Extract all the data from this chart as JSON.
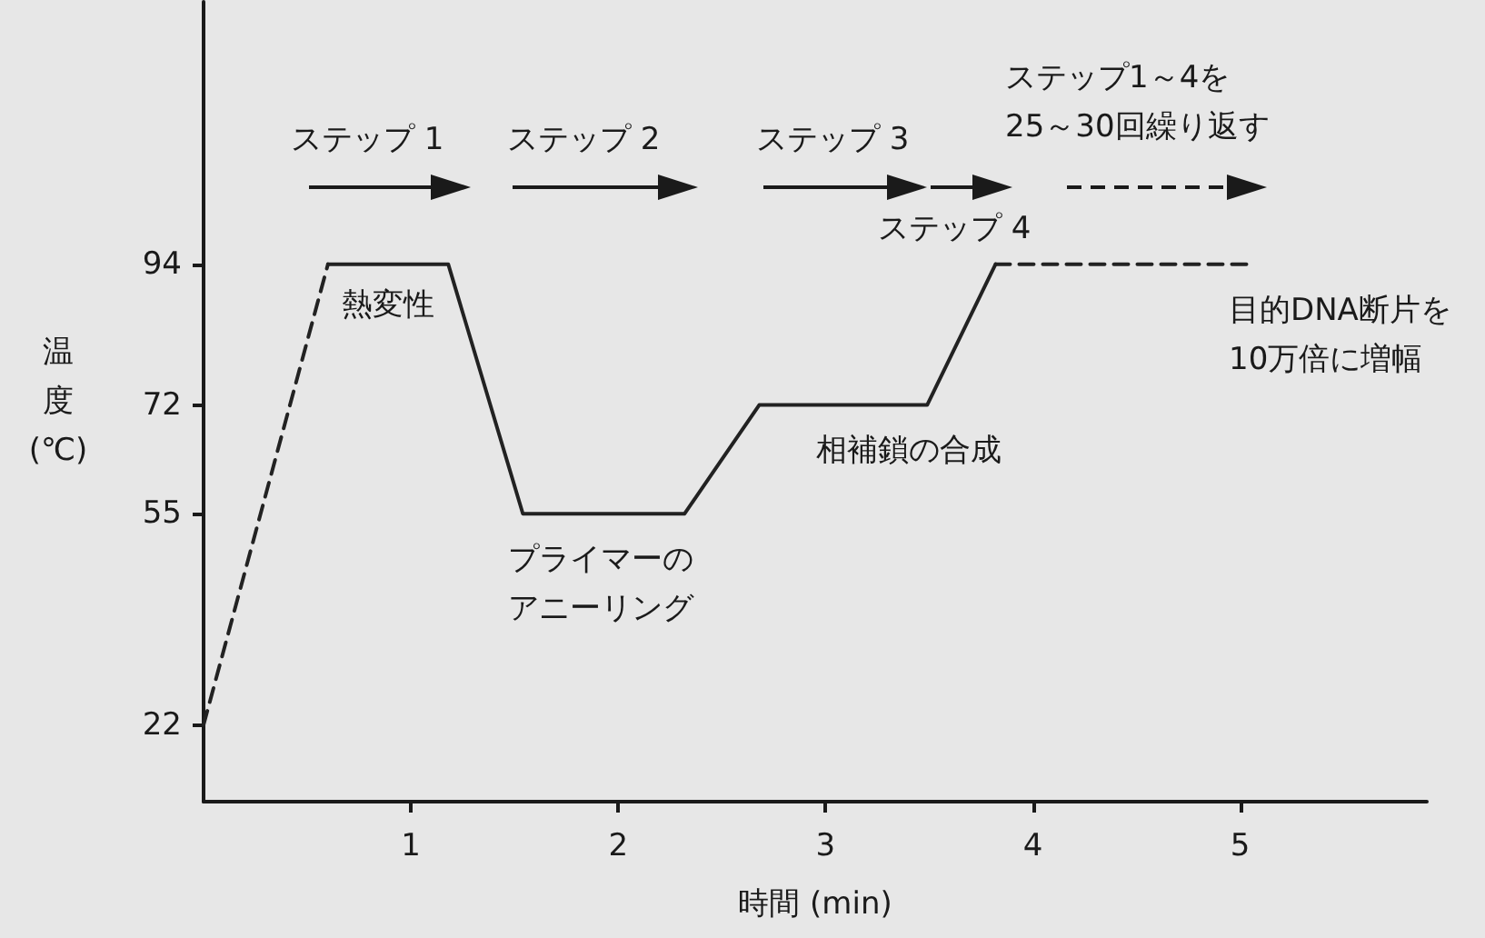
{
  "chart_data": {
    "type": "line",
    "xlabel": "時間 (min)",
    "ylabel": "温度(℃)",
    "xlim": [
      0,
      5.9
    ],
    "ylim": [
      10,
      135
    ],
    "xticks": [
      1,
      2,
      3,
      4,
      5
    ],
    "yticks": [
      22,
      55,
      72,
      94
    ],
    "marker": "none",
    "line_style": "solid",
    "series": [
      {
        "x": [
          0,
          0.6
        ],
        "values": [
          22,
          94
        ],
        "color": "#222222",
        "line_style": "dashed"
      },
      {
        "x": [
          0.6,
          1.18,
          1.54,
          2.32,
          2.68,
          3.49,
          3.82
        ],
        "values": [
          94,
          94,
          55,
          55,
          72,
          72,
          94
        ],
        "color": "#222222"
      },
      {
        "x": [
          3.82,
          5.05
        ],
        "values": [
          94,
          94
        ],
        "color": "#222222",
        "line_style": "dashed"
      }
    ],
    "annotations": [
      "ステップ 1",
      "ステップ 2",
      "ステップ 3",
      "ステップ 4",
      "ステップ1～4を\n25～30回繰り返す",
      {
        "text": "熱変性",
        "x": 0.89,
        "y": 94
      },
      {
        "text": "プライマーのアニーリング",
        "x": 1.93,
        "y": 55
      },
      {
        "text": "相補鎖の合成",
        "x": 3.4,
        "y": 72
      },
      "目的DNA断片を\n10万倍に増幅"
    ]
  }
}
